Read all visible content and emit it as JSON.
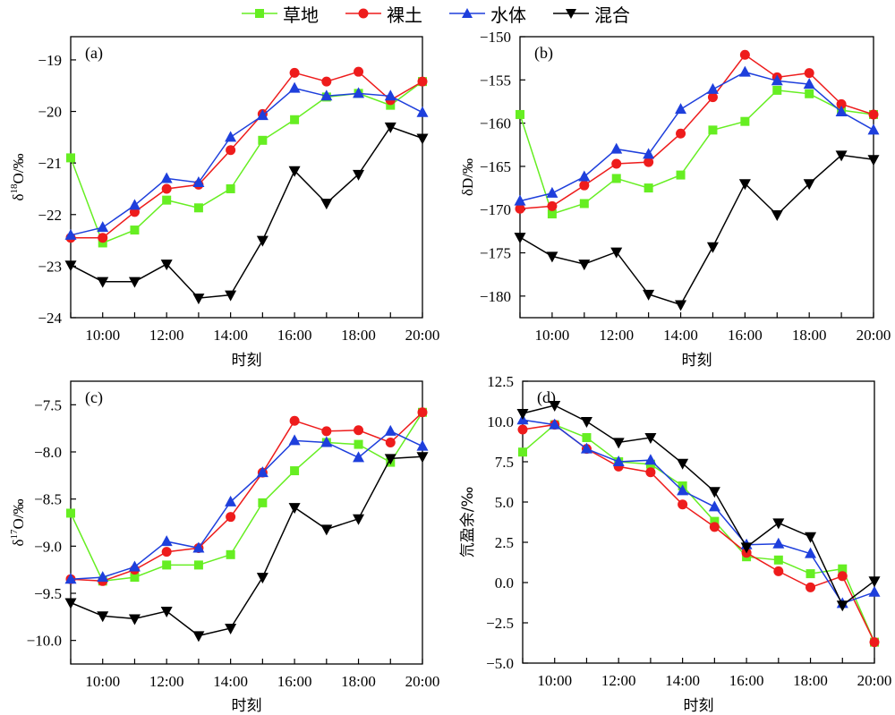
{
  "legend": [
    {
      "name": "草地",
      "color": "#66ee22",
      "marker": "square"
    },
    {
      "name": "裸土",
      "color": "#ee1c1c",
      "marker": "circle"
    },
    {
      "name": "水体",
      "color": "#1e3fdc",
      "marker": "triangle-up"
    },
    {
      "name": "混合",
      "color": "#000000",
      "marker": "triangle-down"
    }
  ],
  "chart_data": [
    {
      "type": "line",
      "panel_label": "(a)",
      "title": "",
      "xlabel": "时刻",
      "ylabel": "δ18O/‰",
      "ylabel_parts": {
        "pre": "δ",
        "sup": "18",
        "post": "O/‰"
      },
      "x": [
        "9:00",
        "10:00",
        "11:00",
        "12:00",
        "13:00",
        "14:00",
        "15:00",
        "16:00",
        "17:00",
        "18:00",
        "19:00",
        "20:00"
      ],
      "xticks": [
        "10:00",
        "12:00",
        "14:00",
        "16:00",
        "18:00",
        "20:00"
      ],
      "ylim": [
        -24,
        -18.55
      ],
      "yticks": [
        -24,
        -23,
        -22,
        -21,
        -20,
        -19
      ],
      "ytick_labels": [
        "−24",
        "−23",
        "−22",
        "−21",
        "−20",
        "−19"
      ],
      "grid": false,
      "series": [
        {
          "name": "草地",
          "values": [
            -20.9,
            -22.55,
            -22.3,
            -21.72,
            -21.87,
            -21.5,
            -20.56,
            -20.16,
            -19.72,
            -19.65,
            -19.88,
            -19.42
          ]
        },
        {
          "name": "裸土",
          "values": [
            -22.45,
            -22.45,
            -21.95,
            -21.5,
            -21.42,
            -20.75,
            -20.05,
            -19.25,
            -19.42,
            -19.23,
            -19.78,
            -19.42
          ]
        },
        {
          "name": "水体",
          "values": [
            -22.4,
            -22.25,
            -21.82,
            -21.3,
            -21.38,
            -20.5,
            -20.08,
            -19.55,
            -19.7,
            -19.65,
            -19.7,
            -20.02
          ]
        },
        {
          "name": "混合",
          "values": [
            -22.98,
            -23.3,
            -23.3,
            -22.96,
            -23.62,
            -23.56,
            -22.5,
            -21.15,
            -21.78,
            -21.22,
            -20.3,
            -20.52
          ]
        }
      ]
    },
    {
      "type": "line",
      "panel_label": "(b)",
      "title": "",
      "xlabel": "时刻",
      "ylabel": "δD/‰",
      "ylabel_parts": {
        "pre": "δD/‰",
        "sup": "",
        "post": ""
      },
      "x": [
        "9:00",
        "10:00",
        "11:00",
        "12:00",
        "13:00",
        "14:00",
        "15:00",
        "16:00",
        "17:00",
        "18:00",
        "19:00",
        "20:00"
      ],
      "xticks": [
        "10:00",
        "12:00",
        "14:00",
        "16:00",
        "18:00",
        "20:00"
      ],
      "ylim": [
        -182.5,
        -150
      ],
      "yticks": [
        -180,
        -175,
        -170,
        -165,
        -160,
        -155,
        -150
      ],
      "ytick_labels": [
        "−180",
        "−175",
        "−170",
        "−165",
        "−160",
        "−155",
        "−150"
      ],
      "grid": false,
      "series": [
        {
          "name": "草地",
          "values": [
            -159,
            -170.5,
            -169.3,
            -166.4,
            -167.5,
            -166,
            -160.8,
            -159.8,
            -156.2,
            -156.6,
            -158.5,
            -159
          ]
        },
        {
          "name": "裸土",
          "values": [
            -169.9,
            -169.6,
            -167.2,
            -164.7,
            -164.5,
            -161.2,
            -157,
            -152.1,
            -154.7,
            -154.2,
            -157.8,
            -159
          ]
        },
        {
          "name": "水体",
          "values": [
            -169,
            -168.1,
            -166.2,
            -163,
            -163.6,
            -158.4,
            -156.1,
            -154.1,
            -155.1,
            -155.5,
            -158.7,
            -160.8
          ]
        },
        {
          "name": "混合",
          "values": [
            -173.2,
            -175.4,
            -176.3,
            -174.9,
            -179.8,
            -181,
            -174.3,
            -167,
            -170.6,
            -167,
            -163.7,
            -164.2
          ]
        }
      ]
    },
    {
      "type": "line",
      "panel_label": "(c)",
      "title": "",
      "xlabel": "时刻",
      "ylabel": "δ17O/‰",
      "ylabel_parts": {
        "pre": "δ",
        "sup": "17",
        "post": "O/‰"
      },
      "x": [
        "9:00",
        "10:00",
        "11:00",
        "12:00",
        "13:00",
        "14:00",
        "15:00",
        "16:00",
        "17:00",
        "18:00",
        "19:00",
        "20:00"
      ],
      "xticks": [
        "10:00",
        "12:00",
        "14:00",
        "16:00",
        "18:00",
        "20:00"
      ],
      "ylim": [
        -10.25,
        -7.25
      ],
      "yticks": [
        -10.0,
        -9.5,
        -9.0,
        -8.5,
        -8.0,
        -7.5
      ],
      "ytick_labels": [
        "−10.0",
        "−9.5",
        "−9.0",
        "−8.5",
        "−8.0",
        "−7.5"
      ],
      "grid": false,
      "series": [
        {
          "name": "草地",
          "values": [
            -8.65,
            -9.37,
            -9.33,
            -9.2,
            -9.2,
            -9.09,
            -8.54,
            -8.2,
            -7.9,
            -7.92,
            -8.11,
            -7.58
          ]
        },
        {
          "name": "裸土",
          "values": [
            -9.35,
            -9.37,
            -9.25,
            -9.06,
            -9.02,
            -8.69,
            -8.22,
            -7.67,
            -7.78,
            -7.77,
            -7.9,
            -7.58
          ]
        },
        {
          "name": "水体",
          "values": [
            -9.35,
            -9.33,
            -9.22,
            -8.95,
            -9.02,
            -8.53,
            -8.22,
            -7.88,
            -7.9,
            -8.06,
            -7.78,
            -7.94
          ]
        },
        {
          "name": "混合",
          "values": [
            -9.6,
            -9.74,
            -9.77,
            -9.69,
            -9.95,
            -9.87,
            -9.33,
            -8.59,
            -8.82,
            -8.71,
            -8.07,
            -8.05
          ]
        }
      ]
    },
    {
      "type": "line",
      "panel_label": "(d)",
      "title": "",
      "xlabel": "时刻",
      "ylabel": "氘盈余/‰",
      "ylabel_parts": {
        "pre": "氘盈余/‰",
        "sup": "",
        "post": ""
      },
      "x": [
        "9:00",
        "10:00",
        "11:00",
        "12:00",
        "13:00",
        "14:00",
        "15:00",
        "16:00",
        "17:00",
        "18:00",
        "19:00",
        "20:00"
      ],
      "xticks": [
        "10:00",
        "12:00",
        "14:00",
        "16:00",
        "18:00",
        "20:00"
      ],
      "ylim": [
        -5,
        12.5
      ],
      "yticks": [
        -5.0,
        -2.5,
        0.0,
        2.5,
        5.0,
        7.5,
        10.0,
        12.5
      ],
      "ytick_labels": [
        "−5.0",
        "−2.5",
        "0.0",
        "2.5",
        "5.0",
        "7.5",
        "10.0",
        "12.5"
      ],
      "grid": false,
      "series": [
        {
          "name": "草地",
          "values": [
            8.1,
            9.8,
            9.0,
            7.5,
            7.35,
            6.0,
            3.8,
            1.6,
            1.4,
            0.55,
            0.85,
            -3.7
          ]
        },
        {
          "name": "裸土",
          "values": [
            9.5,
            9.8,
            8.3,
            7.2,
            6.85,
            4.85,
            3.45,
            1.85,
            0.7,
            -0.3,
            0.4,
            -3.7
          ]
        },
        {
          "name": "水体",
          "values": [
            10.1,
            9.8,
            8.3,
            7.5,
            7.6,
            5.7,
            4.7,
            2.35,
            2.4,
            1.8,
            -1.3,
            -0.6
          ]
        },
        {
          "name": "混合",
          "values": [
            10.5,
            11.0,
            10.0,
            8.7,
            9.0,
            7.4,
            5.65,
            2.2,
            3.7,
            2.85,
            -1.4,
            0.1
          ]
        }
      ]
    }
  ]
}
